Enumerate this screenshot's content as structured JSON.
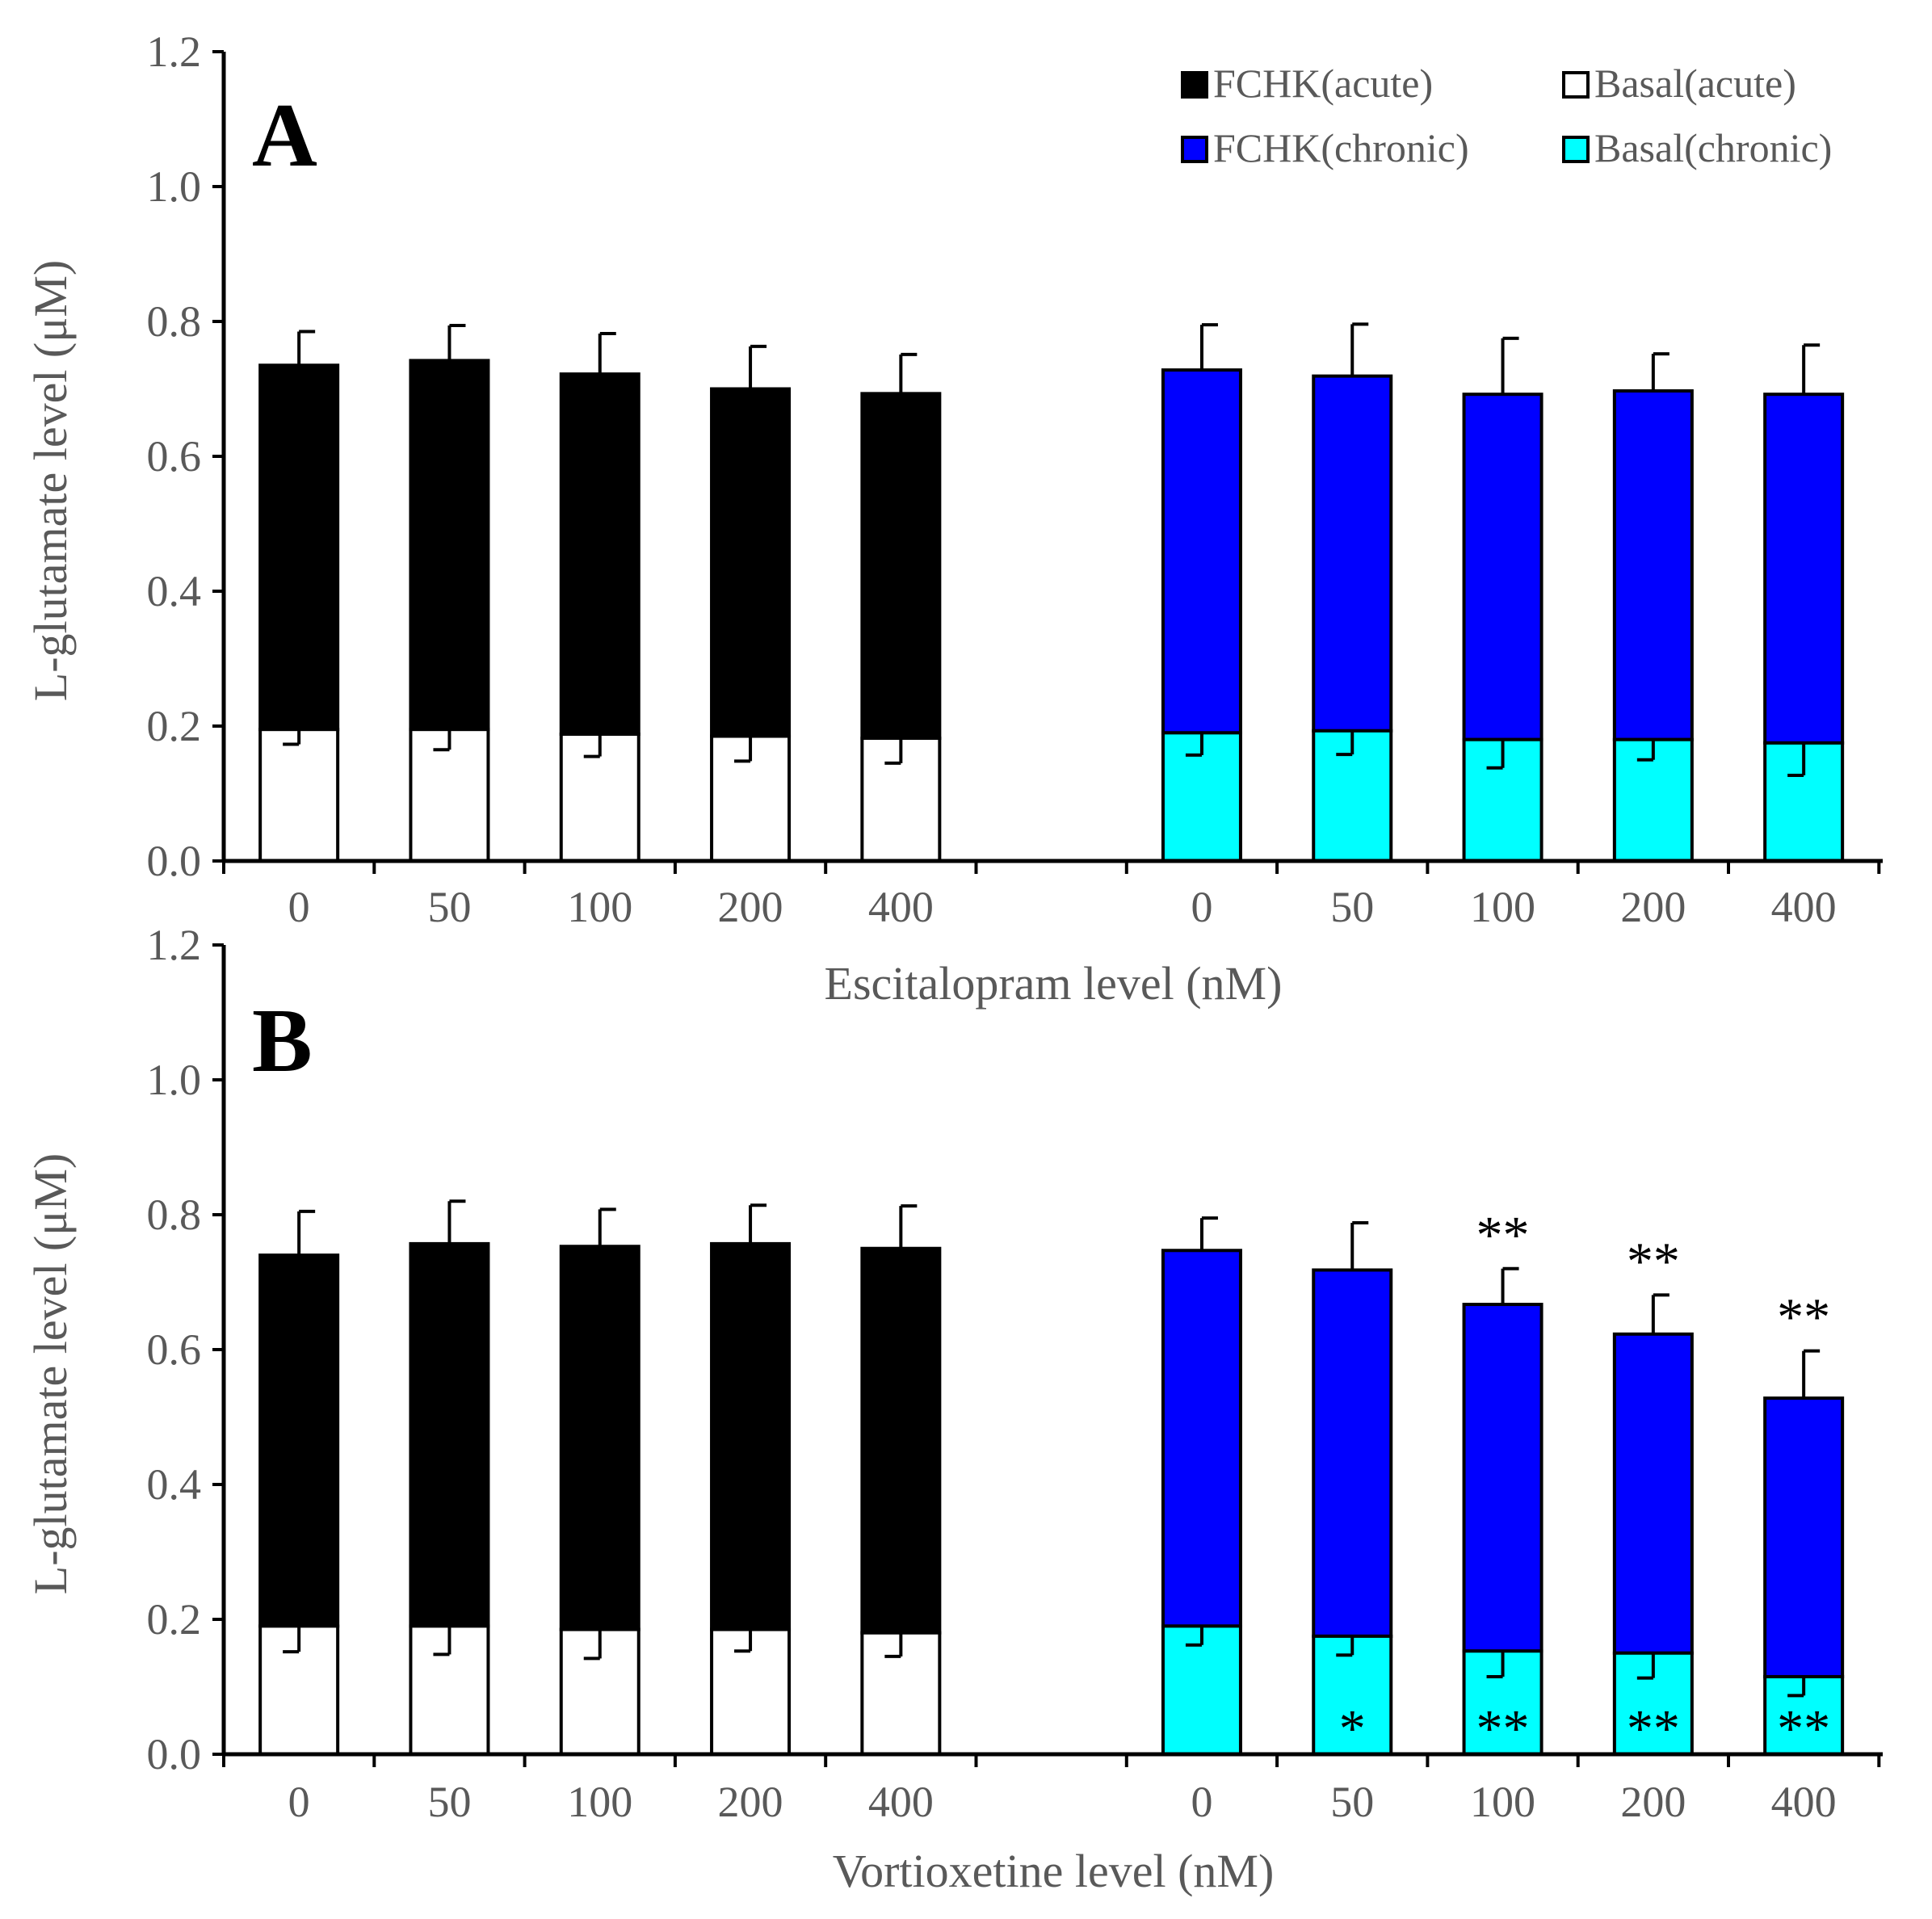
{
  "chart_data": [
    {
      "type": "bar",
      "panel_label": "A",
      "stacked": true,
      "categories": [
        "0",
        "50",
        "100",
        "200",
        "400",
        "0",
        "50",
        "100",
        "200",
        "400"
      ],
      "xlabel": "Escitalopram level (nM)",
      "ylabel": "L-glutamate level (μM)",
      "ylim": [
        0,
        1.2
      ],
      "yticks": [
        "0.0",
        "0.2",
        "0.4",
        "0.6",
        "0.8",
        "1.0",
        "1.2"
      ],
      "legend_position": "top-right",
      "legend": [
        {
          "label": "FCHK(acute)",
          "color": "#000000"
        },
        {
          "label": "Basal(acute)",
          "color": "#ffffff"
        },
        {
          "label": "FCHK(chronic)",
          "color": "#0000ff"
        },
        {
          "label": "Basal(chronic)",
          "color": "#00ffff"
        }
      ],
      "groups": [
        {
          "name": "acute",
          "categories": [
            "0",
            "50",
            "100",
            "200",
            "400"
          ],
          "basal": [
            0.195,
            0.195,
            0.188,
            0.185,
            0.182
          ],
          "basal_err": [
            0.022,
            0.03,
            0.033,
            0.037,
            0.037
          ],
          "fchk": [
            0.735,
            0.742,
            0.722,
            0.7,
            0.693
          ],
          "fchk_err": [
            0.05,
            0.052,
            0.06,
            0.063,
            0.058
          ],
          "basal_color": "#ffffff",
          "fchk_color": "#000000",
          "basal_sig": [
            "",
            "",
            "",
            "",
            ""
          ],
          "fchk_sig": [
            "",
            "",
            "",
            "",
            ""
          ]
        },
        {
          "name": "chronic",
          "categories": [
            "0",
            "50",
            "100",
            "200",
            "400"
          ],
          "basal": [
            0.19,
            0.193,
            0.18,
            0.18,
            0.175
          ],
          "basal_err": [
            0.033,
            0.035,
            0.042,
            0.03,
            0.048
          ],
          "fchk": [
            0.728,
            0.719,
            0.692,
            0.697,
            0.692
          ],
          "fchk_err": [
            0.067,
            0.077,
            0.083,
            0.055,
            0.073
          ],
          "basal_color": "#00ffff",
          "fchk_color": "#0000ff",
          "basal_sig": [
            "",
            "",
            "",
            "",
            ""
          ],
          "fchk_sig": [
            "",
            "",
            "",
            "",
            ""
          ]
        }
      ]
    },
    {
      "type": "bar",
      "panel_label": "B",
      "stacked": true,
      "categories": [
        "0",
        "50",
        "100",
        "200",
        "400",
        "0",
        "50",
        "100",
        "200",
        "400"
      ],
      "xlabel": "Vortioxetine level (nM)",
      "ylabel": "L-glutamate level (μM)",
      "ylim": [
        0,
        1.2
      ],
      "yticks": [
        "0.0",
        "0.2",
        "0.4",
        "0.6",
        "0.8",
        "1.0",
        "1.2"
      ],
      "groups": [
        {
          "name": "acute",
          "categories": [
            "0",
            "50",
            "100",
            "200",
            "400"
          ],
          "basal": [
            0.19,
            0.19,
            0.185,
            0.185,
            0.18
          ],
          "basal_err": [
            0.038,
            0.042,
            0.043,
            0.032,
            0.035
          ],
          "fchk": [
            0.74,
            0.757,
            0.753,
            0.757,
            0.75
          ],
          "fchk_err": [
            0.065,
            0.063,
            0.055,
            0.057,
            0.063
          ],
          "basal_color": "#ffffff",
          "fchk_color": "#000000",
          "basal_sig": [
            "",
            "",
            "",
            "",
            ""
          ],
          "fchk_sig": [
            "",
            "",
            "",
            "",
            ""
          ]
        },
        {
          "name": "chronic",
          "categories": [
            "0",
            "50",
            "100",
            "200",
            "400"
          ],
          "basal": [
            0.19,
            0.175,
            0.153,
            0.15,
            0.115
          ],
          "basal_err": [
            0.028,
            0.028,
            0.038,
            0.037,
            0.028
          ],
          "fchk": [
            0.747,
            0.718,
            0.667,
            0.623,
            0.528
          ],
          "fchk_err": [
            0.048,
            0.07,
            0.053,
            0.058,
            0.07
          ],
          "basal_color": "#00ffff",
          "fchk_color": "#0000ff",
          "basal_sig": [
            "",
            "*",
            "**",
            "**",
            "**"
          ],
          "fchk_sig": [
            "",
            "",
            "**",
            "**",
            "**"
          ]
        }
      ]
    }
  ]
}
